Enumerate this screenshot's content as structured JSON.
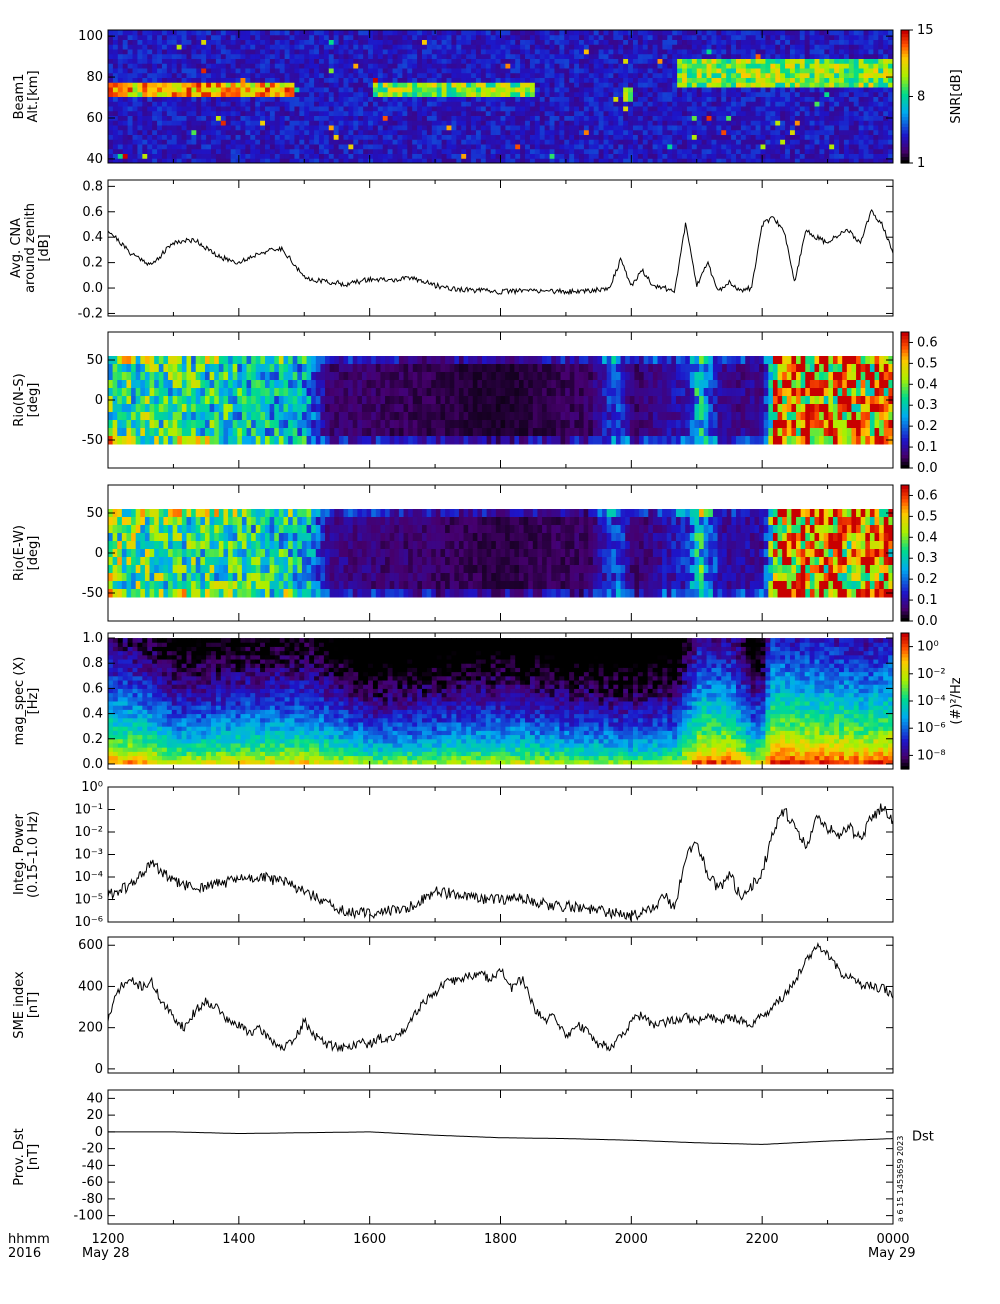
{
  "time_axis": {
    "left_label": [
      "hhmm",
      "2016"
    ],
    "ticks": [
      "1200",
      "1400",
      "1600",
      "1800",
      "2000",
      "2200",
      "0000"
    ],
    "date_left": "May 28",
    "date_right": "May 29"
  },
  "chart_data": [
    {
      "type": "heatmap",
      "ylabel": [
        "Beam1",
        "Alt.[km]"
      ],
      "ylim": [
        38,
        103
      ],
      "yticks": [
        "40",
        "60",
        "80",
        "100"
      ],
      "colorbar": {
        "label": "SNR[dB]",
        "ticks": [
          "1",
          "8",
          "15"
        ],
        "range": [
          1,
          15
        ],
        "palette": "rainbow"
      },
      "features": [
        {
          "start": "1200",
          "end": "1450",
          "altitude": [
            72,
            76
          ],
          "level": "high"
        },
        {
          "start": "1600",
          "end": "1830",
          "altitude": [
            73,
            76
          ],
          "level": "medium"
        },
        {
          "start": "1950",
          "end": "2000",
          "altitude": [
            71,
            73
          ],
          "level": "medium"
        },
        {
          "start": "2040",
          "end": "0000",
          "altitude": [
            78,
            88
          ],
          "level": "medium"
        }
      ]
    },
    {
      "type": "line",
      "ylabel": [
        "Avg. CNA",
        "around zenith",
        "[dB]"
      ],
      "ylim": [
        -0.22,
        0.85
      ],
      "yticks": [
        "-0.2",
        "0.0",
        "0.2",
        "0.4",
        "0.6",
        "0.8"
      ],
      "x": [
        "1200",
        "1220",
        "1240",
        "1300",
        "1320",
        "1340",
        "1400",
        "1420",
        "1440",
        "1500",
        "1520",
        "1540",
        "1600",
        "1620",
        "1640",
        "1700",
        "1720",
        "1740",
        "1800",
        "1820",
        "1840",
        "1900",
        "1920",
        "1940",
        "1950",
        "2000",
        "2010",
        "2020",
        "2030",
        "2040",
        "2050",
        "2100",
        "2110",
        "2120",
        "2130",
        "2140",
        "2150",
        "2200",
        "2210",
        "2220",
        "2230",
        "2240",
        "2250",
        "2300",
        "2310",
        "2320",
        "2330",
        "2340",
        "2350",
        "0000"
      ],
      "values": [
        0.46,
        0.28,
        0.18,
        0.36,
        0.38,
        0.25,
        0.2,
        0.28,
        0.31,
        0.08,
        0.05,
        0.03,
        0.07,
        0.06,
        0.08,
        0.02,
        -0.01,
        -0.02,
        -0.03,
        -0.02,
        -0.02,
        -0.03,
        -0.02,
        0.0,
        0.22,
        0.02,
        0.14,
        0.02,
        0.0,
        -0.02,
        0.52,
        0.02,
        0.2,
        -0.03,
        0.05,
        -0.02,
        0.0,
        0.5,
        0.55,
        0.45,
        0.05,
        0.45,
        0.4,
        0.35,
        0.42,
        0.45,
        0.35,
        0.6,
        0.5,
        0.28
      ]
    },
    {
      "type": "heatmap",
      "ylabel": [
        "Rio(N-S)",
        "[deg]"
      ],
      "ylim": [
        -85,
        85
      ],
      "yticks": [
        "-50",
        "0",
        "50"
      ],
      "colorbar": {
        "label": "",
        "ticks": [
          "0.0",
          "0.1",
          "0.2",
          "0.3",
          "0.4",
          "0.5",
          "0.6"
        ],
        "range": [
          0,
          0.65
        ],
        "palette": "rainbow-black"
      },
      "data_lat_range": [
        -55,
        55
      ],
      "activity_profile": [
        [
          "1200",
          0.35
        ],
        [
          "1330",
          0.32
        ],
        [
          "1500",
          0.25
        ],
        [
          "1520",
          0.06
        ],
        [
          "1800",
          0.02
        ],
        [
          "1920",
          0.05
        ],
        [
          "1945",
          0.18
        ],
        [
          "2000",
          0.05
        ],
        [
          "2050",
          0.12
        ],
        [
          "2100",
          0.3
        ],
        [
          "2120",
          0.08
        ],
        [
          "2200",
          0.08
        ],
        [
          "2210",
          0.55
        ],
        [
          "2300",
          0.52
        ],
        [
          "0000",
          0.5
        ]
      ]
    },
    {
      "type": "heatmap",
      "ylabel": [
        "Rio(E-W)",
        "[deg]"
      ],
      "ylim": [
        -85,
        85
      ],
      "yticks": [
        "-50",
        "0",
        "50"
      ],
      "colorbar": {
        "label": "",
        "ticks": [
          "0.0",
          "0.1",
          "0.2",
          "0.3",
          "0.4",
          "0.5",
          "0.6"
        ],
        "range": [
          0,
          0.65
        ],
        "palette": "rainbow-black"
      },
      "data_lat_range": [
        -55,
        55
      ],
      "activity_profile": [
        [
          "1200",
          0.38
        ],
        [
          "1330",
          0.34
        ],
        [
          "1500",
          0.28
        ],
        [
          "1520",
          0.08
        ],
        [
          "1800",
          0.03
        ],
        [
          "1920",
          0.05
        ],
        [
          "1945",
          0.18
        ],
        [
          "2000",
          0.05
        ],
        [
          "2050",
          0.14
        ],
        [
          "2100",
          0.32
        ],
        [
          "2120",
          0.09
        ],
        [
          "2200",
          0.1
        ],
        [
          "2210",
          0.55
        ],
        [
          "2300",
          0.52
        ],
        [
          "0000",
          0.5
        ]
      ]
    },
    {
      "type": "heatmap",
      "ylabel": [
        "mag_spec (X)",
        "[Hz]"
      ],
      "ylim": [
        -0.04,
        1.04
      ],
      "yticks": [
        "0.0",
        "0.2",
        "0.4",
        "0.6",
        "0.8",
        "1.0"
      ],
      "colorbar": {
        "label": "(#)²/Hz",
        "ticks": [
          "10⁻⁸",
          "10⁻⁶",
          "10⁻⁴",
          "10⁻²",
          "10⁰"
        ],
        "log_range": [
          -9,
          1
        ],
        "palette": "rainbow-black"
      },
      "spectral_profile": [
        [
          "1200",
          -1.5
        ],
        [
          "1230",
          -1.8
        ],
        [
          "1300",
          -3.0
        ],
        [
          "1400",
          -2.6
        ],
        [
          "1500",
          -2.4
        ],
        [
          "1600",
          -3.8
        ],
        [
          "1800",
          -3.2
        ],
        [
          "1900",
          -3.6
        ],
        [
          "2000",
          -3.8
        ],
        [
          "2040",
          -3.5
        ],
        [
          "2100",
          -0.8
        ],
        [
          "2130",
          -1.0
        ],
        [
          "2150",
          -3.0
        ],
        [
          "2200",
          -2.6
        ],
        [
          "2205",
          -0.2
        ],
        [
          "2300",
          -0.5
        ],
        [
          "2330",
          -0.8
        ],
        [
          "0000",
          -0.4
        ]
      ]
    },
    {
      "type": "line",
      "ylabel": [
        "Integ. Power",
        "(0.15–1.0 Hz)"
      ],
      "log_y": true,
      "ylim_log10": [
        -6,
        0
      ],
      "yticks": [
        "10⁻⁶",
        "10⁻⁵",
        "10⁻⁴",
        "10⁻³",
        "10⁻²",
        "10⁻¹",
        "10⁰"
      ],
      "x": [
        "1200",
        "1220",
        "1240",
        "1300",
        "1320",
        "1340",
        "1400",
        "1420",
        "1440",
        "1500",
        "1520",
        "1540",
        "1600",
        "1620",
        "1640",
        "1700",
        "1720",
        "1740",
        "1800",
        "1820",
        "1840",
        "1900",
        "1920",
        "1940",
        "2000",
        "2010",
        "2020",
        "2030",
        "2040",
        "2050",
        "2100",
        "2110",
        "2120",
        "2130",
        "2140",
        "2150",
        "2200",
        "2210",
        "2220",
        "2230",
        "2240",
        "2250",
        "2300",
        "2310",
        "2320",
        "2330",
        "2340",
        "2350",
        "0000"
      ],
      "values_log10": [
        -4.8,
        -4.4,
        -3.4,
        -4.2,
        -4.5,
        -4.3,
        -4.1,
        -4.0,
        -4.2,
        -4.6,
        -5.2,
        -5.6,
        -5.6,
        -5.5,
        -5.3,
        -4.6,
        -4.8,
        -5.0,
        -5.0,
        -4.9,
        -5.2,
        -5.3,
        -5.4,
        -5.6,
        -5.7,
        -5.6,
        -5.4,
        -4.8,
        -5.5,
        -3.0,
        -2.4,
        -3.8,
        -4.6,
        -3.8,
        -4.9,
        -4.4,
        -3.8,
        -2.0,
        -1.0,
        -1.8,
        -2.6,
        -1.4,
        -1.8,
        -2.2,
        -1.8,
        -2.3,
        -1.4,
        -0.9,
        -1.5
      ]
    },
    {
      "type": "line",
      "ylabel": [
        "SME index",
        "[nT]"
      ],
      "ylim": [
        -20,
        640
      ],
      "yticks": [
        "0",
        "200",
        "400",
        "600"
      ],
      "x": [
        "1200",
        "1210",
        "1220",
        "1230",
        "1240",
        "1250",
        "1300",
        "1310",
        "1320",
        "1330",
        "1340",
        "1350",
        "1400",
        "1410",
        "1420",
        "1430",
        "1440",
        "1450",
        "1500",
        "1510",
        "1520",
        "1530",
        "1540",
        "1550",
        "1600",
        "1610",
        "1620",
        "1630",
        "1640",
        "1650",
        "1700",
        "1710",
        "1720",
        "1730",
        "1740",
        "1750",
        "1800",
        "1810",
        "1820",
        "1830",
        "1840",
        "1850",
        "1900",
        "1910",
        "1920",
        "1930",
        "1940",
        "1950",
        "2000",
        "2010",
        "2020",
        "2030",
        "2040",
        "2050",
        "2100",
        "2110",
        "2120",
        "2130",
        "2140",
        "2150",
        "2200",
        "2210",
        "2220",
        "2230",
        "2240",
        "2250",
        "2300",
        "2310",
        "2320",
        "2330",
        "2340",
        "2350",
        "0000"
      ],
      "values": [
        240,
        390,
        430,
        400,
        420,
        320,
        250,
        200,
        280,
        330,
        300,
        230,
        210,
        180,
        190,
        140,
        100,
        130,
        230,
        160,
        120,
        110,
        100,
        130,
        120,
        150,
        140,
        180,
        260,
        330,
        370,
        420,
        430,
        450,
        460,
        440,
        480,
        390,
        440,
        300,
        230,
        260,
        150,
        220,
        180,
        120,
        110,
        150,
        230,
        260,
        210,
        220,
        240,
        250,
        230,
        250,
        240,
        250,
        240,
        210,
        260,
        300,
        350,
        430,
        520,
        600,
        550,
        480,
        440,
        410,
        400,
        390,
        360
      ]
    },
    {
      "type": "line",
      "ylabel": [
        "Prov. Dst",
        "[nT]"
      ],
      "ylim": [
        -110,
        50
      ],
      "yticks": [
        "-100",
        "-80",
        "-60",
        "-40",
        "-20",
        "0",
        "20",
        "40"
      ],
      "series_label": "Dst",
      "x": [
        "1200",
        "1300",
        "1400",
        "1500",
        "1600",
        "1700",
        "1800",
        "1900",
        "2000",
        "2100",
        "2200",
        "2300",
        "0000"
      ],
      "values": [
        0,
        0,
        -2,
        -1,
        0,
        -4,
        -7,
        -8,
        -10,
        -13,
        -15,
        -11,
        -8
      ]
    }
  ],
  "stamp": "a 6 15 1453659 2023"
}
